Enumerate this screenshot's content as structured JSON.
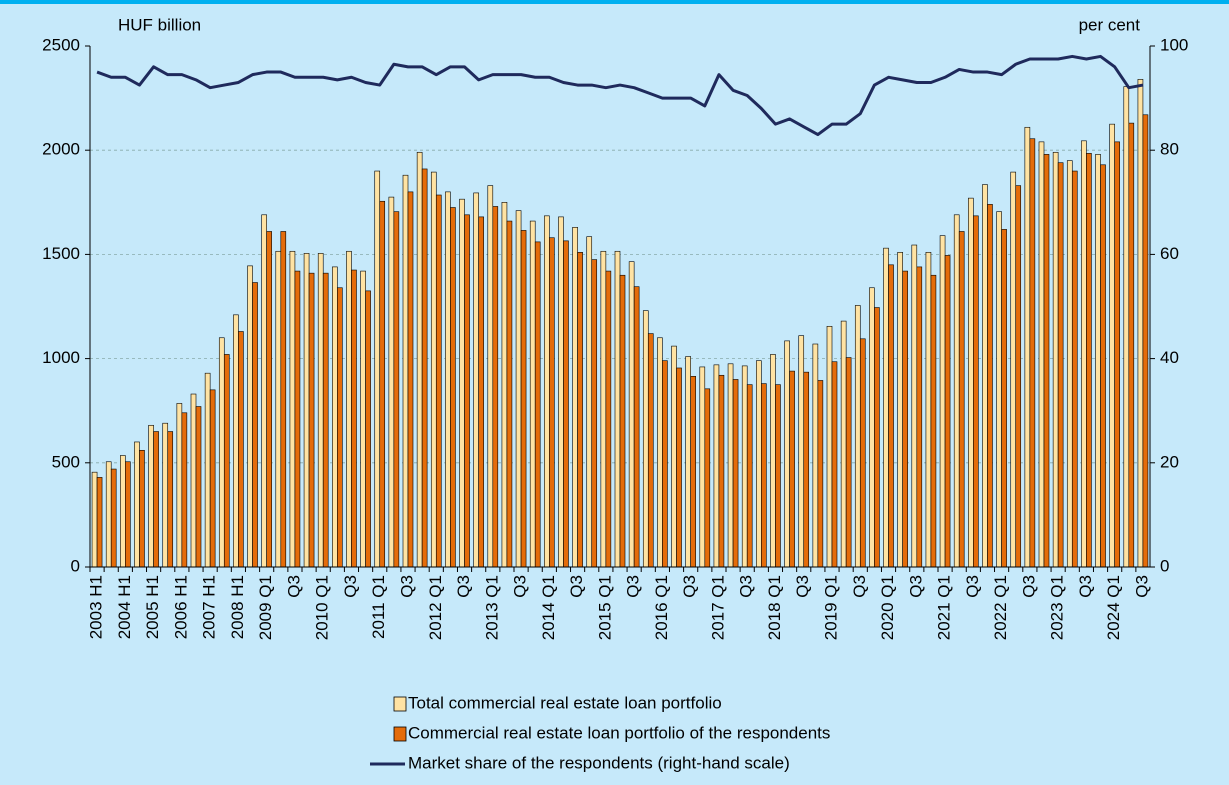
{
  "chart_data": {
    "type": "bar",
    "y_label": "HUF billion",
    "y2_label": "per cent",
    "categories": [
      "2003 H1",
      null,
      "2004 H1",
      null,
      "2005 H1",
      null,
      "2006 H1",
      null,
      "2007 H1",
      null,
      "2008 H1",
      null,
      "2009 Q1",
      null,
      "Q3",
      null,
      "2010 Q1",
      null,
      "Q3",
      null,
      "2011 Q1",
      null,
      "Q3",
      null,
      "2012 Q1",
      null,
      "Q3",
      null,
      "2013 Q1",
      null,
      "Q3",
      null,
      "2014 Q1",
      null,
      "Q3",
      null,
      "2015 Q1",
      null,
      "Q3",
      null,
      "2016 Q1",
      null,
      "Q3",
      null,
      "2017 Q1",
      null,
      "Q3",
      null,
      "2018 Q1",
      null,
      "Q3",
      null,
      "2019 Q1",
      null,
      "Q3",
      null,
      "2020 Q1",
      null,
      "Q3",
      null,
      "2021 Q1",
      null,
      "Q3",
      null,
      "2022 Q1",
      null,
      "Q3",
      null,
      "2023 Q1",
      null,
      "Q3",
      null,
      "2024 Q1",
      null,
      "Q3"
    ],
    "series": [
      {
        "name": "Total commercial real estate loan portfolio",
        "type": "bar",
        "color": "#ffe3a3",
        "values": [
          455,
          505,
          535,
          600,
          680,
          690,
          785,
          830,
          930,
          1100,
          1210,
          1445,
          1690,
          1515,
          1515,
          1505,
          1505,
          1440,
          1515,
          1420,
          1900,
          1775,
          1880,
          1990,
          1895,
          1800,
          1765,
          1795,
          1830,
          1750,
          1710,
          1660,
          1685,
          1680,
          1630,
          1585,
          1515,
          1515,
          1465,
          1230,
          1100,
          1060,
          1010,
          960,
          970,
          975,
          965,
          990,
          1020,
          1085,
          1110,
          1070,
          1155,
          1180,
          1255,
          1340,
          1530,
          1510,
          1545,
          1510,
          1590,
          1690,
          1770,
          1835,
          1705,
          1895,
          2110,
          2040,
          1990,
          1950,
          2045,
          1980,
          2125,
          2305,
          2340
        ]
      },
      {
        "name": "Commercial real estate loan portfolio of the respondents",
        "type": "bar",
        "color": "#e46c0a",
        "values": [
          430,
          470,
          505,
          560,
          650,
          650,
          740,
          770,
          850,
          1020,
          1130,
          1365,
          1610,
          1610,
          1420,
          1410,
          1410,
          1340,
          1425,
          1325,
          1755,
          1705,
          1800,
          1910,
          1785,
          1725,
          1690,
          1680,
          1730,
          1660,
          1615,
          1560,
          1580,
          1565,
          1510,
          1475,
          1420,
          1400,
          1345,
          1120,
          990,
          955,
          915,
          855,
          920,
          900,
          875,
          880,
          875,
          940,
          935,
          895,
          985,
          1005,
          1095,
          1245,
          1450,
          1420,
          1440,
          1400,
          1495,
          1610,
          1685,
          1740,
          1620,
          1830,
          2055,
          1980,
          1940,
          1900,
          1985,
          1930,
          2040,
          2130,
          2170
        ]
      },
      {
        "name": "Market share of the respondents (right-hand scale)",
        "type": "line",
        "axis": "y2",
        "color": "#1f2a5c",
        "values": [
          95,
          94,
          94,
          92.5,
          96,
          94.5,
          94.5,
          93.5,
          92,
          92.5,
          93,
          94.5,
          95,
          95,
          94,
          94,
          94,
          93.5,
          94,
          93,
          92.5,
          96.5,
          96,
          96,
          94.5,
          96,
          96,
          93.5,
          94.5,
          94.5,
          94.5,
          94,
          94,
          93,
          92.5,
          92.5,
          92,
          92.5,
          92,
          91,
          90,
          90,
          90,
          88.5,
          94.5,
          91.5,
          90.5,
          88,
          85,
          86,
          84.5,
          83,
          85,
          85,
          87,
          92.5,
          94,
          93.5,
          93,
          93,
          94,
          95.5,
          95,
          95,
          94.5,
          96.5,
          97.5,
          97.5,
          97.5,
          98,
          97.5,
          98,
          96,
          92,
          92.5
        ]
      }
    ],
    "ylim": [
      0,
      2500
    ],
    "yticks": [
      0,
      500,
      1000,
      1500,
      2000,
      2500
    ],
    "y2lim": [
      0,
      100
    ],
    "y2ticks": [
      0,
      20,
      40,
      60,
      80,
      100
    ],
    "grid": true
  }
}
